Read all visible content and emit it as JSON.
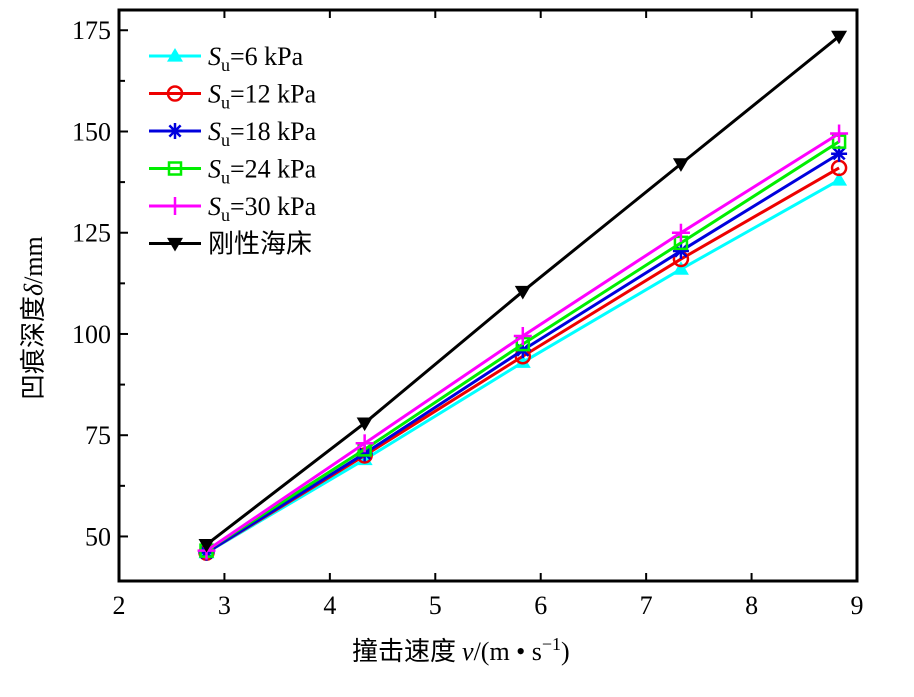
{
  "chart_data": {
    "type": "line",
    "title": "",
    "xlabel": "撞击速度 v/(m • s−1)",
    "xlabel_parts": {
      "cn": "撞击速度",
      "var": "v",
      "unit_a": "/(m • s",
      "sup": "−1",
      "unit_b": ")"
    },
    "ylabel": "凹痕深度 δ/mm",
    "ylabel_parts": {
      "cn": "凹痕深度",
      "var": "δ",
      "unit": "/mm"
    },
    "xlim": [
      2,
      9
    ],
    "ylim": [
      39,
      180
    ],
    "xticks": [
      "2",
      "3",
      "4",
      "5",
      "6",
      "7",
      "8",
      "9"
    ],
    "yticks": [
      "50",
      "75",
      "100",
      "125",
      "150",
      "175"
    ],
    "grid": false,
    "legend_position": "top-left",
    "x": [
      2.83,
      4.33,
      5.83,
      7.33,
      8.83
    ],
    "series": [
      {
        "name": "Su=6 kPa",
        "label_s": "S",
        "label_sub": "u",
        "label_rest": "=6 kPa",
        "color": "#00ffff",
        "marker": "triangle-up",
        "values": [
          46,
          69,
          93,
          116,
          138
        ]
      },
      {
        "name": "Su=12 kPa",
        "label_s": "S",
        "label_sub": "u",
        "label_rest": "=12 kPa",
        "color": "#ee0000",
        "marker": "circle",
        "values": [
          46,
          70,
          94.5,
          118.5,
          141
        ]
      },
      {
        "name": "Su=18 kPa",
        "label_s": "S",
        "label_sub": "u",
        "label_rest": "=18 kPa",
        "color": "#0000dd",
        "marker": "asterisk",
        "values": [
          46,
          70.5,
          96,
          120.5,
          144.5
        ]
      },
      {
        "name": "Su=24 kPa",
        "label_s": "S",
        "label_sub": "u",
        "label_rest": "=24 kPa",
        "color": "#00ee00",
        "marker": "square",
        "values": [
          46.5,
          71.5,
          97.5,
          122.5,
          147.5
        ]
      },
      {
        "name": "Su=30 kPa",
        "label_s": "S",
        "label_sub": "u",
        "label_rest": "=30 kPa",
        "color": "#ff00ff",
        "marker": "plus",
        "values": [
          46.5,
          73,
          99.5,
          125,
          149.5
        ]
      },
      {
        "name": "刚性海床",
        "label_s": "",
        "label_sub": "",
        "label_rest": "刚性海床",
        "color": "#000000",
        "marker": "triangle-down",
        "values": [
          48,
          78,
          110.5,
          142,
          173.5
        ]
      }
    ]
  }
}
